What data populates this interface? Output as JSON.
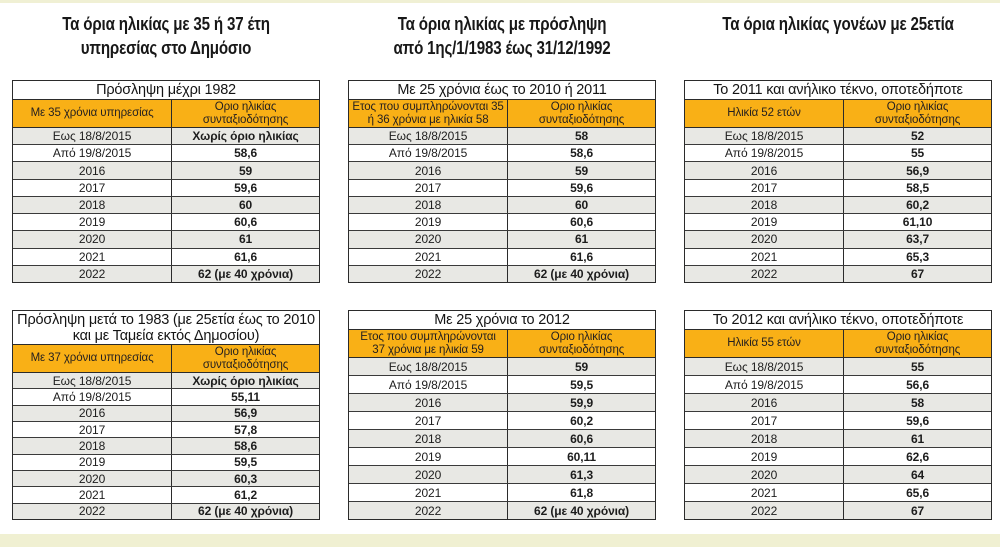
{
  "page": {
    "background": "#ffffff",
    "accent_orange": "#f9b016",
    "row_alt_gray": "#e8e8e4",
    "border_color": "#2b2b2b",
    "strip_color": "#f0f0d2"
  },
  "section_titles": [
    {
      "text": "Τα όρια ηλικίας με 35 ή 37 έτη\nυπηρεσίας στο Δημόσιο"
    },
    {
      "text": "Τα όρια ηλικίας με πρόσληψη\nαπό 1ης/1/1983 έως 31/12/1992"
    },
    {
      "text": "Τα όρια ηλικίας γονέων με 25ετία"
    }
  ],
  "tables": [
    {
      "title": "Πρόσληψη μέχρι 1982",
      "col1": "Με 35 χρόνια υπηρεσίας",
      "col2": "Οριο ηλικίας\nσυνταξιοδότησης",
      "rows": [
        {
          "label": "Εως 18/8/2015",
          "value": "Χωρίς όριο ηλικίας"
        },
        {
          "label": "Από 19/8/2015",
          "value": "58,6"
        },
        {
          "label": "2016",
          "value": "59"
        },
        {
          "label": "2017",
          "value": "59,6"
        },
        {
          "label": "2018",
          "value": "60"
        },
        {
          "label": "2019",
          "value": "60,6"
        },
        {
          "label": "2020",
          "value": "61"
        },
        {
          "label": "2021",
          "value": "61,6"
        },
        {
          "label": "2022",
          "value": "62 (με 40 χρόνια)"
        }
      ]
    },
    {
      "title": "Με 25 χρόνια έως το 2010 ή 2011",
      "col1": "Ετος που συμπληρώνονται 35\nή 36 χρόνια με ηλικία 58",
      "col2": "Οριο ηλικίας\nσυνταξιοδότησης",
      "rows": [
        {
          "label": "Εως 18/8/2015",
          "value": "58"
        },
        {
          "label": "Από 19/8/2015",
          "value": "58,6"
        },
        {
          "label": "2016",
          "value": "59"
        },
        {
          "label": "2017",
          "value": "59,6"
        },
        {
          "label": "2018",
          "value": "60"
        },
        {
          "label": "2019",
          "value": "60,6"
        },
        {
          "label": "2020",
          "value": "61"
        },
        {
          "label": "2021",
          "value": "61,6"
        },
        {
          "label": "2022",
          "value": "62 (με 40 χρόνια)"
        }
      ]
    },
    {
      "title": "Το 2011 και ανήλικο τέκνο, οποτεδήποτε",
      "col1": "Ηλικία 52 ετών",
      "col2": "Οριο ηλικίας\nσυνταξιοδότησης",
      "rows": [
        {
          "label": "Εως 18/8/2015",
          "value": "52"
        },
        {
          "label": "Από 19/8/2015",
          "value": "55"
        },
        {
          "label": "2016",
          "value": "56,9"
        },
        {
          "label": "2017",
          "value": "58,5"
        },
        {
          "label": "2018",
          "value": "60,2"
        },
        {
          "label": "2019",
          "value": "61,10"
        },
        {
          "label": "2020",
          "value": "63,7"
        },
        {
          "label": "2021",
          "value": "65,3"
        },
        {
          "label": "2022",
          "value": "67"
        }
      ]
    },
    {
      "title": "Πρόσληψη μετά το 1983 (με 25ετία έως το 2010\nκαι με Ταμεία εκτός Δημοσίου)",
      "col1": "Με 37 χρόνια υπηρεσίας",
      "col2": "Οριο ηλικίας\nσυνταξιοδότησης",
      "rows": [
        {
          "label": "Εως 18/8/2015",
          "value": "Χωρίς όριο ηλικίας"
        },
        {
          "label": "Από 19/8/2015",
          "value": "55,11"
        },
        {
          "label": "2016",
          "value": "56,9"
        },
        {
          "label": "2017",
          "value": "57,8"
        },
        {
          "label": "2018",
          "value": "58,6"
        },
        {
          "label": "2019",
          "value": "59,5"
        },
        {
          "label": "2020",
          "value": "60,3"
        },
        {
          "label": "2021",
          "value": "61,2"
        },
        {
          "label": "2022",
          "value": "62 (με 40 χρόνια)"
        }
      ]
    },
    {
      "title": "Με 25 χρόνια το 2012",
      "col1": "Ετος που συμπληρώνονται\n37 χρόνια με ηλικία 59",
      "col2": "Οριο ηλικίας\nσυνταξιοδότησης",
      "rows": [
        {
          "label": "Εως 18/8/2015",
          "value": "59"
        },
        {
          "label": "Από 19/8/2015",
          "value": "59,5"
        },
        {
          "label": "2016",
          "value": "59,9"
        },
        {
          "label": "2017",
          "value": "60,2"
        },
        {
          "label": "2018",
          "value": "60,6"
        },
        {
          "label": "2019",
          "value": "60,11"
        },
        {
          "label": "2020",
          "value": "61,3"
        },
        {
          "label": "2021",
          "value": "61,8"
        },
        {
          "label": "2022",
          "value": "62 (με 40 χρόνια)"
        }
      ]
    },
    {
      "title": "Το 2012 και ανήλικο τέκνο, οποτεδήποτε",
      "col1": "Ηλικία 55 ετών",
      "col2": "Οριο ηλικίας\nσυνταξιοδότησης",
      "rows": [
        {
          "label": "Εως 18/8/2015",
          "value": "55"
        },
        {
          "label": "Από 19/8/2015",
          "value": "56,6"
        },
        {
          "label": "2016",
          "value": "58"
        },
        {
          "label": "2017",
          "value": "59,6"
        },
        {
          "label": "2018",
          "value": "61"
        },
        {
          "label": "2019",
          "value": "62,6"
        },
        {
          "label": "2020",
          "value": "64"
        },
        {
          "label": "2021",
          "value": "65,6"
        },
        {
          "label": "2022",
          "value": "67"
        }
      ]
    }
  ]
}
